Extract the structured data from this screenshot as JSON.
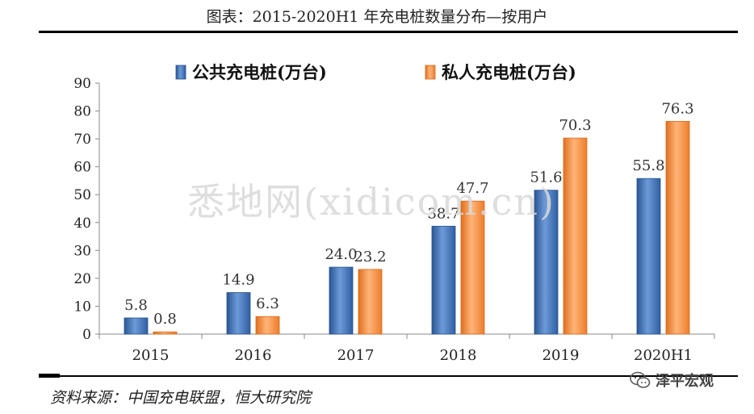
{
  "title": "图表：2015-2020H1 年充电桩数量分布—按用户",
  "source": "资料来源：中国充电联盟，恒大研究院",
  "brand": "泽平宏观",
  "watermark": "悉地网(xidicom.cn)",
  "chart_data": {
    "type": "bar",
    "categories": [
      "2015",
      "2016",
      "2017",
      "2018",
      "2019",
      "2020H1"
    ],
    "series": [
      {
        "name": "公共充电桩(万台)",
        "values": [
          5.8,
          14.9,
          24.0,
          38.7,
          51.6,
          55.8
        ],
        "labels": [
          "5.8",
          "14.9",
          "24.0",
          "38.7",
          "51.6",
          "55.8"
        ],
        "color": "#3f6fb5"
      },
      {
        "name": "私人充电桩(万台)",
        "values": [
          0.8,
          6.3,
          23.2,
          47.7,
          70.3,
          76.3
        ],
        "labels": [
          "0.8",
          "6.3",
          "23.2",
          "47.7",
          "70.3",
          "76.3"
        ],
        "color": "#f08a3c"
      }
    ],
    "ylim": [
      0,
      90
    ],
    "yticks": [
      "0",
      "10",
      "20",
      "30",
      "40",
      "50",
      "60",
      "70",
      "80",
      "90"
    ],
    "xlabel": "",
    "ylabel": "",
    "legend": "top",
    "grid": false
  }
}
